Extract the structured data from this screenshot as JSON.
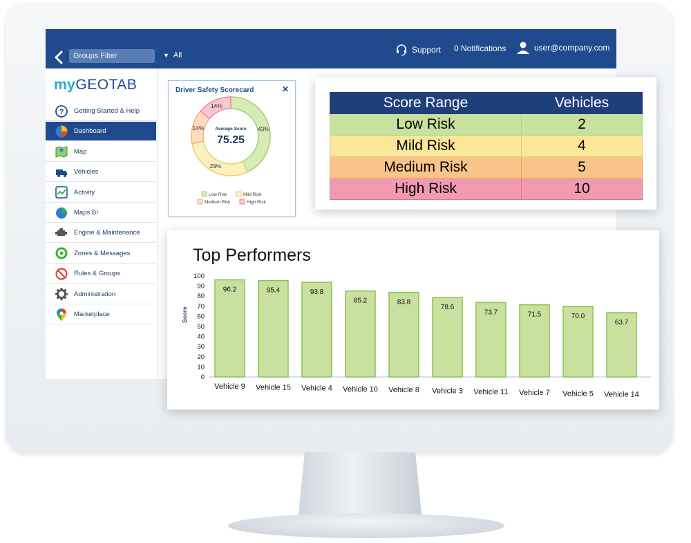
{
  "topbar": {
    "groups_filter_placeholder": "Groups Filter",
    "groups_value": "All",
    "support_label": "Support",
    "notifications_label": "0 Notifications",
    "user_label": "user@company.com"
  },
  "sidebar": {
    "logo_my": "my",
    "logo_geotab": "GEOTAB",
    "items": [
      {
        "label": "Getting Started & Help",
        "icon": "help-icon"
      },
      {
        "label": "Dashboard",
        "icon": "dashboard-icon"
      },
      {
        "label": "Map",
        "icon": "map-icon"
      },
      {
        "label": "Vehicles",
        "icon": "vehicles-icon"
      },
      {
        "label": "Activity",
        "icon": "activity-icon"
      },
      {
        "label": "Maps BI",
        "icon": "maps-bi-icon"
      },
      {
        "label": "Engine & Maintenance",
        "icon": "engine-icon"
      },
      {
        "label": "Zones & Messages",
        "icon": "zones-icon"
      },
      {
        "label": "Rules & Groups",
        "icon": "rules-icon"
      },
      {
        "label": "Administration",
        "icon": "gear-icon"
      },
      {
        "label": "Marketplace",
        "icon": "marketplace-icon"
      }
    ],
    "active_index": 1
  },
  "scorecard": {
    "title": "Driver Safety Scorecard",
    "close_glyph": "✕",
    "center_label": "Average Score",
    "center_value": "75.25"
  },
  "risk_table": {
    "headers": [
      "Score Range",
      "Vehicles"
    ],
    "rows": [
      {
        "range": "Low Risk",
        "vehicles": "2"
      },
      {
        "range": "Mild Risk",
        "vehicles": "4"
      },
      {
        "range": "Medium Risk",
        "vehicles": "5"
      },
      {
        "range": "High Risk",
        "vehicles": "10"
      }
    ]
  },
  "colors": {
    "navy": "#1f4b8e",
    "low": "#c7e29e",
    "mild": "#fbe79a",
    "medium": "#f9c48a",
    "high": "#f29ab0",
    "bar_fill": "#c8e19f",
    "bar_stroke": "#8cc155"
  },
  "chart_data": [
    {
      "type": "pie",
      "title": "Driver Safety Scorecard",
      "series": [
        {
          "name": "Low Risk",
          "value": 43,
          "label": "43%",
          "color": "#d6ebb6",
          "stroke": "#a8cf73"
        },
        {
          "name": "Mild Risk",
          "value": 29,
          "label": "29%",
          "color": "#fdf0c0",
          "stroke": "#e6cf66"
        },
        {
          "name": "Medium Risk",
          "value": 14,
          "label": "14%",
          "color": "#fcdcbd",
          "stroke": "#eeb47c"
        },
        {
          "name": "High Risk",
          "value": 14,
          "label": "14%",
          "color": "#f9c6d3",
          "stroke": "#e88aa3"
        }
      ],
      "legend_placement": "bottom"
    },
    {
      "type": "bar",
      "title": "Top Performers",
      "ylabel": "Score",
      "xlabel": "",
      "ylim": [
        0,
        100
      ],
      "yticks": [
        0,
        10,
        20,
        30,
        40,
        50,
        60,
        70,
        80,
        90,
        100
      ],
      "categories": [
        "Vehicle 9",
        "Vehicle 15",
        "Vehicle 4",
        "Vehicle 10",
        "Vehicle 8",
        "Vehicle 3",
        "Vehicle 11",
        "Vehicle 7",
        "Vehicle 5",
        "Vehicle 14"
      ],
      "values": [
        96.2,
        95.4,
        93.8,
        85.2,
        83.8,
        78.6,
        73.7,
        71.5,
        70.0,
        63.7
      ],
      "value_labels": [
        "96.2",
        "95.4",
        "93.8",
        "85.2",
        "83.8",
        "78.6",
        "73.7",
        "71.5",
        "70.0",
        "63.7"
      ],
      "grid": false
    }
  ]
}
